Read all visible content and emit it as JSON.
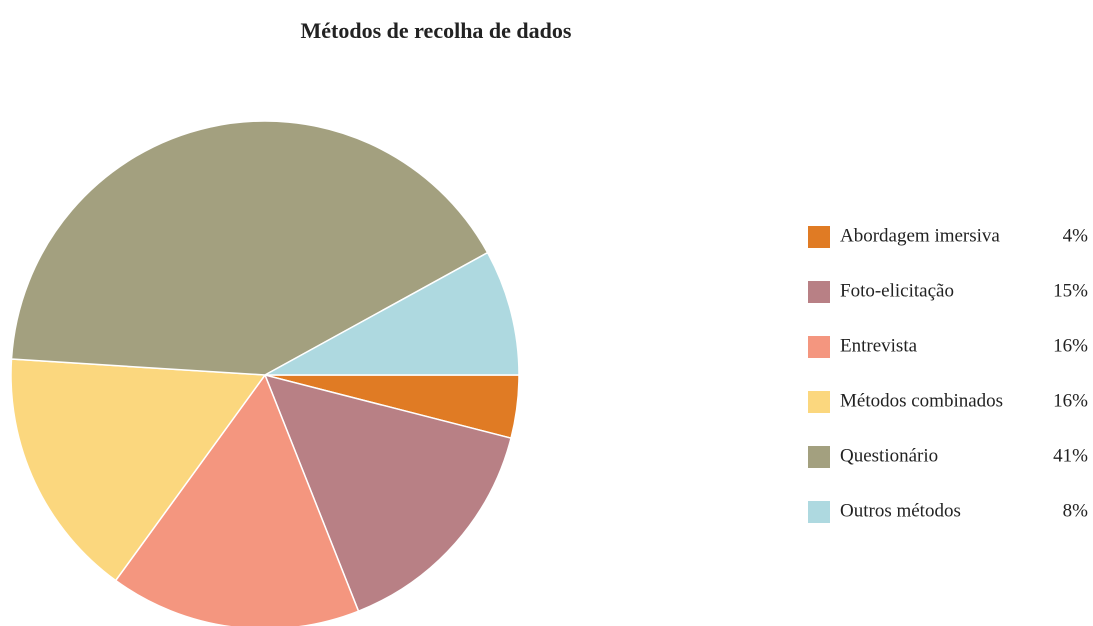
{
  "chart_data": {
    "type": "pie",
    "title": "Métodos de recolha de dados",
    "categories": [
      "Abordagem imersiva",
      "Foto-elicitação",
      "Entrevista",
      "Métodos combinados",
      "Questionário",
      "Outros métodos"
    ],
    "values": [
      4,
      15,
      16,
      16,
      41,
      8
    ],
    "value_labels": [
      "4%",
      "15%",
      "16%",
      "16%",
      "41%",
      "8%"
    ],
    "colors": [
      "#e07b24",
      "#b88085",
      "#f4967f",
      "#fbd77e",
      "#a3a07f",
      "#aed9e0"
    ],
    "legend": "right"
  }
}
